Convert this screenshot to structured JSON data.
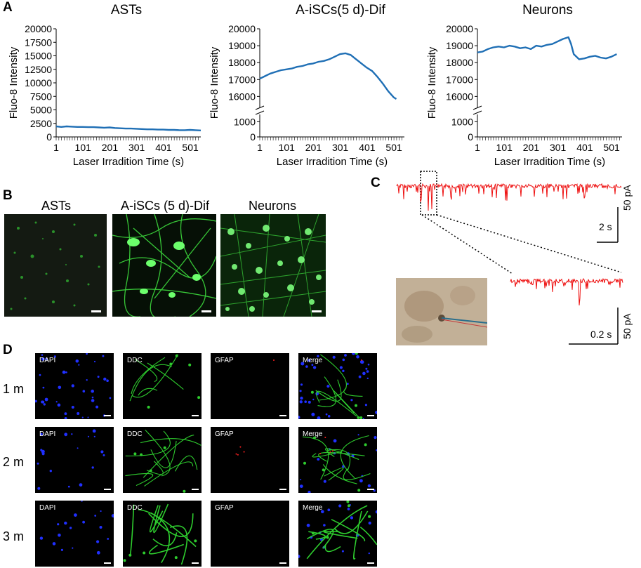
{
  "panel_letters": {
    "a": "A",
    "b": "B",
    "c": "C",
    "d": "D"
  },
  "panel_b": {
    "titles": [
      "ASTs",
      "A-iSCs (5 d)-Dif",
      "Neurons"
    ]
  },
  "panel_c": {
    "upper_scale_x": "2 s",
    "upper_scale_y": "50 pA",
    "lower_scale_x": "0.2 s",
    "lower_scale_y": "50 pA"
  },
  "panel_d": {
    "rows": [
      "1 m",
      "2 m",
      "3 m"
    ],
    "channels": [
      "DAPI",
      "DDC",
      "GFAP",
      "Merge"
    ]
  },
  "colors": {
    "line": "#1f6fb5",
    "trace": "#ee1111",
    "green": "#2ecc2e",
    "blue": "#2030ff",
    "red": "#ff2020"
  },
  "chart_data": [
    {
      "type": "line",
      "title": "ASTs",
      "xlabel": "Laser Irradition Time (s)",
      "ylabel": "Fluo-8 Intensity",
      "x_ticks": [
        "1",
        "101",
        "201",
        "301",
        "401",
        "501"
      ],
      "y_ticks": [
        "0",
        "2500",
        "5000",
        "7500",
        "10000",
        "12500",
        "15000",
        "17500",
        "20000"
      ],
      "ylim": [
        0,
        20000
      ],
      "xlim": [
        1,
        540
      ],
      "x": [
        1,
        20,
        40,
        60,
        80,
        100,
        120,
        140,
        160,
        180,
        200,
        220,
        240,
        260,
        280,
        300,
        320,
        340,
        360,
        380,
        400,
        420,
        440,
        460,
        480,
        500,
        520,
        540
      ],
      "y": [
        1950,
        1850,
        1950,
        1900,
        1850,
        1850,
        1800,
        1800,
        1750,
        1700,
        1750,
        1650,
        1600,
        1550,
        1550,
        1500,
        1450,
        1400,
        1400,
        1350,
        1350,
        1300,
        1300,
        1250,
        1250,
        1300,
        1250,
        1200
      ]
    },
    {
      "type": "line",
      "title": "A-iSCs(5 d)-Dif",
      "xlabel": "Laser Irradition Time (s)",
      "ylabel": "Fluo-8 Intensity",
      "x_ticks": [
        "1",
        "101",
        "201",
        "301",
        "401",
        "501"
      ],
      "y_ticks_lower": [
        "0",
        "1000"
      ],
      "y_ticks_upper": [
        "16000",
        "17000",
        "18000",
        "19000",
        "20000"
      ],
      "broken_axis": true,
      "ylim_lower": [
        0,
        1200
      ],
      "ylim_upper": [
        15600,
        20000
      ],
      "xlim": [
        1,
        540
      ],
      "x": [
        1,
        20,
        40,
        60,
        80,
        100,
        120,
        140,
        160,
        180,
        200,
        220,
        240,
        260,
        280,
        300,
        320,
        340,
        360,
        380,
        400,
        420,
        440,
        460,
        480,
        500,
        510
      ],
      "y": [
        17050,
        17200,
        17350,
        17450,
        17550,
        17600,
        17650,
        17750,
        17800,
        17900,
        17950,
        18050,
        18100,
        18200,
        18350,
        18500,
        18550,
        18450,
        18200,
        17950,
        17700,
        17500,
        17150,
        16750,
        16300,
        15950,
        15850
      ]
    },
    {
      "type": "line",
      "title": "Neurons",
      "xlabel": "Laser Irradition Time (s)",
      "ylabel": "Fluo-8 Intensity",
      "x_ticks": [
        "1",
        "101",
        "201",
        "301",
        "401",
        "501"
      ],
      "y_ticks_lower": [
        "0",
        "1000"
      ],
      "y_ticks_upper": [
        "16000",
        "17000",
        "18000",
        "19000",
        "20000"
      ],
      "broken_axis": true,
      "ylim_lower": [
        0,
        1200
      ],
      "ylim_upper": [
        15600,
        20000
      ],
      "xlim": [
        1,
        540
      ],
      "x": [
        1,
        20,
        40,
        60,
        80,
        100,
        120,
        140,
        160,
        180,
        200,
        220,
        240,
        260,
        280,
        300,
        320,
        340,
        350,
        360,
        380,
        400,
        420,
        440,
        460,
        480,
        500,
        520
      ],
      "y": [
        18600,
        18650,
        18800,
        18900,
        18950,
        18900,
        19000,
        18950,
        18850,
        18900,
        18800,
        19000,
        18950,
        19050,
        19100,
        19250,
        19400,
        19500,
        19100,
        18500,
        18200,
        18250,
        18350,
        18400,
        18300,
        18250,
        18350,
        18500
      ]
    }
  ]
}
